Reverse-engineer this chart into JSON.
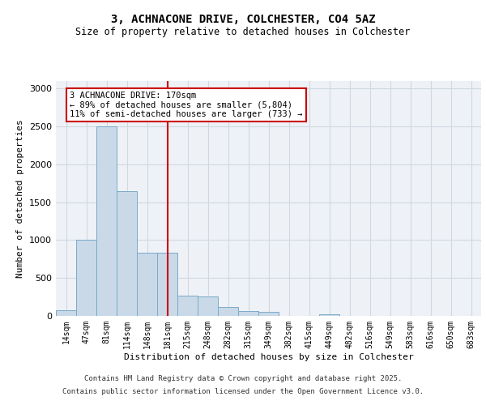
{
  "title_line1": "3, ACHNACONE DRIVE, COLCHESTER, CO4 5AZ",
  "title_line2": "Size of property relative to detached houses in Colchester",
  "xlabel": "Distribution of detached houses by size in Colchester",
  "ylabel": "Number of detached properties",
  "categories": [
    "14sqm",
    "47sqm",
    "81sqm",
    "114sqm",
    "148sqm",
    "181sqm",
    "215sqm",
    "248sqm",
    "282sqm",
    "315sqm",
    "349sqm",
    "382sqm",
    "415sqm",
    "449sqm",
    "482sqm",
    "516sqm",
    "549sqm",
    "583sqm",
    "616sqm",
    "650sqm",
    "683sqm"
  ],
  "values": [
    75,
    1000,
    2500,
    1650,
    830,
    830,
    270,
    260,
    120,
    60,
    50,
    0,
    0,
    25,
    0,
    0,
    0,
    0,
    0,
    0,
    0
  ],
  "bar_color": "#c9d9e8",
  "bar_edge_color": "#7aaac8",
  "grid_color": "#d0d8e0",
  "bg_color": "#eef2f7",
  "vline_x_index": 5.0,
  "vline_color": "#cc0000",
  "annotation_text": "3 ACHNACONE DRIVE: 170sqm\n← 89% of detached houses are smaller (5,804)\n11% of semi-detached houses are larger (733) →",
  "annotation_box_color": "#cc0000",
  "ylim": [
    0,
    3100
  ],
  "yticks": [
    0,
    500,
    1000,
    1500,
    2000,
    2500,
    3000
  ],
  "footer_line1": "Contains HM Land Registry data © Crown copyright and database right 2025.",
  "footer_line2": "Contains public sector information licensed under the Open Government Licence v3.0."
}
